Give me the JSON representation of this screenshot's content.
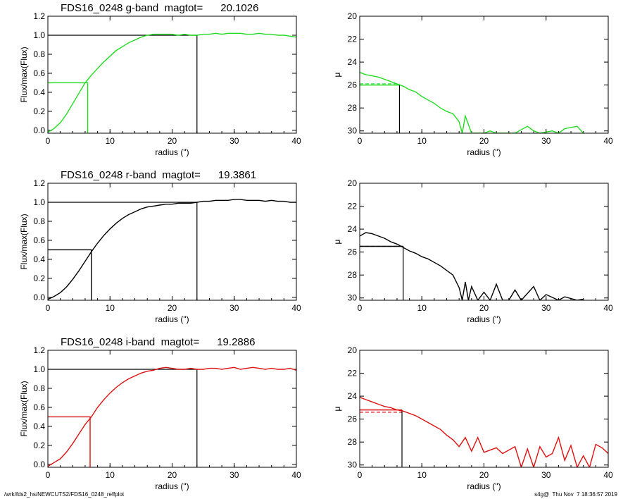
{
  "footer": {
    "path": "/wrk/fds2_hs/NEWCUTS2/FDS16_0248_reffplot",
    "stamp": "s4g@  Thu Nov  7 18:36:57 2019"
  },
  "colors": {
    "g": "#22dd22",
    "r": "#000000",
    "i": "#dd1111",
    "frame": "#000000"
  },
  "chart_data": [
    {
      "type": "line",
      "band": "g",
      "panel": "growth-curve",
      "title": "FDS16_0248 g-band  magtot=      20.1026",
      "xlabel": "radius (\")",
      "ylabel": "Flux/max(Flux)",
      "xlim": [
        0,
        40
      ],
      "ylim": [
        -0.03,
        1.2
      ],
      "xticks": [
        "0",
        "10",
        "20",
        "30",
        "40"
      ],
      "yticks": [
        "0.0",
        "0.2",
        "0.4",
        "0.6",
        "0.8",
        "1.0",
        "1.2"
      ],
      "series": [
        {
          "color": "#22dd22",
          "x": [
            0,
            1,
            2,
            3,
            4,
            5,
            6,
            7,
            8,
            9,
            10,
            11,
            12,
            13,
            14,
            15,
            16,
            17,
            18,
            19,
            20,
            21,
            22,
            23,
            24,
            25,
            26,
            27,
            28,
            29,
            30,
            31,
            32,
            33,
            34,
            35,
            36,
            37,
            38,
            39,
            40
          ],
          "y": [
            -0.02,
            0.02,
            0.08,
            0.17,
            0.28,
            0.39,
            0.5,
            0.58,
            0.65,
            0.72,
            0.78,
            0.84,
            0.88,
            0.92,
            0.95,
            0.98,
            1.0,
            1.01,
            1.01,
            1.01,
            1.01,
            1.0,
            1.01,
            1.0,
            1.0,
            1.01,
            1.01,
            1.02,
            1.01,
            1.02,
            1.02,
            1.02,
            1.01,
            1.01,
            1.02,
            1.01,
            1.01,
            1.0,
            1.0,
            0.99,
            0.98
          ]
        }
      ],
      "half_light": {
        "radius": 6.4,
        "flux": 0.5
      },
      "total": {
        "radius": 24,
        "flux": 1.0
      }
    },
    {
      "type": "line",
      "band": "g",
      "panel": "surface-brightness",
      "xlabel": "radius (\")",
      "ylabel": "μ",
      "xlim": [
        0,
        40
      ],
      "ylim": [
        30.2,
        20
      ],
      "y_reversed": true,
      "xticks": [
        "0",
        "10",
        "20",
        "30",
        "40"
      ],
      "yticks": [
        "20",
        "22",
        "24",
        "26",
        "28",
        "30"
      ],
      "series": [
        {
          "color": "#22dd22",
          "x": [
            0,
            1,
            2,
            3,
            4,
            5,
            6,
            7,
            8,
            9,
            10,
            11,
            12,
            13,
            14,
            15,
            16,
            16.5,
            17,
            18,
            20,
            21,
            22,
            25,
            27,
            28,
            29,
            31,
            32,
            33,
            35,
            36
          ],
          "y": [
            24.9,
            25.1,
            25.2,
            25.3,
            25.5,
            25.7,
            25.9,
            26.1,
            26.4,
            26.6,
            27.0,
            27.3,
            27.6,
            28.0,
            28.3,
            28.5,
            29.2,
            30.2,
            28.7,
            30.2,
            30.2,
            30.0,
            30.2,
            30.2,
            29.6,
            30.0,
            30.2,
            30.0,
            30.2,
            29.8,
            29.6,
            30.2
          ]
        }
      ],
      "half_light": {
        "radius": 6.4,
        "mu": 26.0,
        "mu_mean": 25.9
      }
    },
    {
      "type": "line",
      "band": "r",
      "panel": "growth-curve",
      "title": "FDS16_0248 r-band  magtot=      19.3861",
      "xlabel": "radius (\")",
      "ylabel": "Flux/max(Flux)",
      "xlim": [
        0,
        40
      ],
      "ylim": [
        -0.03,
        1.2
      ],
      "xticks": [
        "0",
        "10",
        "20",
        "30",
        "40"
      ],
      "yticks": [
        "0.0",
        "0.2",
        "0.4",
        "0.6",
        "0.8",
        "1.0",
        "1.2"
      ],
      "series": [
        {
          "color": "#000000",
          "x": [
            0,
            1,
            2,
            3,
            4,
            5,
            6,
            7,
            8,
            9,
            10,
            11,
            12,
            13,
            14,
            15,
            16,
            17,
            18,
            19,
            20,
            21,
            22,
            23,
            24,
            25,
            26,
            27,
            28,
            29,
            30,
            31,
            32,
            33,
            34,
            35,
            36,
            37,
            38,
            39,
            40
          ],
          "y": [
            -0.02,
            0.01,
            0.05,
            0.11,
            0.19,
            0.28,
            0.38,
            0.48,
            0.57,
            0.65,
            0.72,
            0.78,
            0.83,
            0.87,
            0.9,
            0.93,
            0.95,
            0.96,
            0.97,
            0.98,
            0.98,
            0.99,
            0.99,
            0.99,
            1.0,
            1.01,
            1.01,
            1.02,
            1.02,
            1.02,
            1.03,
            1.03,
            1.02,
            1.02,
            1.02,
            1.01,
            1.02,
            1.01,
            1.01,
            1.0,
            1.0
          ]
        }
      ],
      "half_light": {
        "radius": 7.0,
        "flux": 0.5
      },
      "total": {
        "radius": 24,
        "flux": 1.0
      }
    },
    {
      "type": "line",
      "band": "r",
      "panel": "surface-brightness",
      "xlabel": "radius (\")",
      "ylabel": "μ",
      "xlim": [
        0,
        40
      ],
      "ylim": [
        30.2,
        20
      ],
      "y_reversed": true,
      "xticks": [
        "0",
        "10",
        "20",
        "30",
        "40"
      ],
      "yticks": [
        "20",
        "22",
        "24",
        "26",
        "28",
        "30"
      ],
      "series": [
        {
          "color": "#000000",
          "x": [
            0,
            1,
            2,
            3,
            4,
            5,
            6,
            7,
            8,
            9,
            10,
            11,
            12,
            13,
            14,
            15,
            16,
            16.5,
            17,
            17.5,
            18,
            19,
            20,
            21,
            22,
            23,
            24,
            25,
            26,
            28,
            29,
            30,
            32,
            33,
            35,
            36
          ],
          "y": [
            24.6,
            24.3,
            24.4,
            24.6,
            24.8,
            25.1,
            25.3,
            25.6,
            25.9,
            26.1,
            26.4,
            26.6,
            26.9,
            27.2,
            27.6,
            28.0,
            29.1,
            30.2,
            28.6,
            30.2,
            29.0,
            30.2,
            29.5,
            30.2,
            28.8,
            30.2,
            30.2,
            29.3,
            30.2,
            29.0,
            30.2,
            29.7,
            30.2,
            29.9,
            30.2,
            30.1
          ]
        }
      ],
      "half_light": {
        "radius": 7.0,
        "mu": 25.5,
        "mu_mean": 25.5
      }
    },
    {
      "type": "line",
      "band": "i",
      "panel": "growth-curve",
      "title": "FDS16_0248 i-band  magtot=      19.2886",
      "xlabel": "radius (\")",
      "ylabel": "Flux/max(Flux)",
      "xlim": [
        0,
        40
      ],
      "ylim": [
        -0.03,
        1.2
      ],
      "xticks": [
        "0",
        "10",
        "20",
        "30",
        "40"
      ],
      "yticks": [
        "0.0",
        "0.2",
        "0.4",
        "0.6",
        "0.8",
        "1.0",
        "1.2"
      ],
      "series": [
        {
          "color": "#dd1111",
          "x": [
            0,
            1,
            2,
            3,
            4,
            5,
            6,
            7,
            8,
            9,
            10,
            11,
            12,
            13,
            14,
            15,
            16,
            17,
            18,
            19,
            20,
            21,
            22,
            23,
            24,
            25,
            26,
            27,
            28,
            29,
            30,
            31,
            32,
            33,
            34,
            35,
            36,
            37,
            38,
            39,
            40
          ],
          "y": [
            -0.02,
            0.02,
            0.06,
            0.13,
            0.22,
            0.32,
            0.42,
            0.5,
            0.6,
            0.68,
            0.75,
            0.81,
            0.86,
            0.9,
            0.93,
            0.96,
            0.98,
            0.99,
            1.01,
            1.02,
            1.01,
            1.0,
            1.0,
            1.01,
            1.0,
            1.0,
            1.01,
            1.01,
            1.0,
            1.01,
            1.02,
            1.0,
            1.01,
            1.02,
            1.01,
            1.0,
            1.01,
            1.0,
            1.0,
            1.01,
            0.99
          ]
        }
      ],
      "half_light": {
        "radius": 6.8,
        "flux": 0.5
      },
      "total": {
        "radius": 24,
        "flux": 1.0
      }
    },
    {
      "type": "line",
      "band": "i",
      "panel": "surface-brightness",
      "xlabel": "radius (\")",
      "ylabel": "μ",
      "xlim": [
        0,
        40
      ],
      "ylim": [
        30.2,
        20
      ],
      "y_reversed": true,
      "xticks": [
        "0",
        "10",
        "20",
        "30",
        "40"
      ],
      "yticks": [
        "20",
        "22",
        "24",
        "26",
        "28",
        "30"
      ],
      "series": [
        {
          "color": "#dd1111",
          "x": [
            0,
            1,
            2,
            3,
            4,
            5,
            6,
            7,
            8,
            9,
            10,
            11,
            12,
            13,
            14,
            15,
            16,
            17,
            18,
            19,
            20,
            22,
            23,
            25,
            26,
            27,
            28,
            29,
            30,
            31,
            32,
            33,
            34,
            35,
            36,
            37,
            38,
            39,
            40
          ],
          "y": [
            24.1,
            24.3,
            24.5,
            24.7,
            24.9,
            25.0,
            25.2,
            25.3,
            25.5,
            25.7,
            26.0,
            26.3,
            26.6,
            26.9,
            27.4,
            27.8,
            28.4,
            27.6,
            28.8,
            27.6,
            28.9,
            28.5,
            29.0,
            28.4,
            30.2,
            28.6,
            30.2,
            28.4,
            29.3,
            29.0,
            27.6,
            29.6,
            28.3,
            30.2,
            29.2,
            30.2,
            28.2,
            28.5,
            29.0
          ]
        }
      ],
      "half_light": {
        "radius": 6.8,
        "mu": 25.2,
        "mu_mean": 25.4
      }
    }
  ]
}
